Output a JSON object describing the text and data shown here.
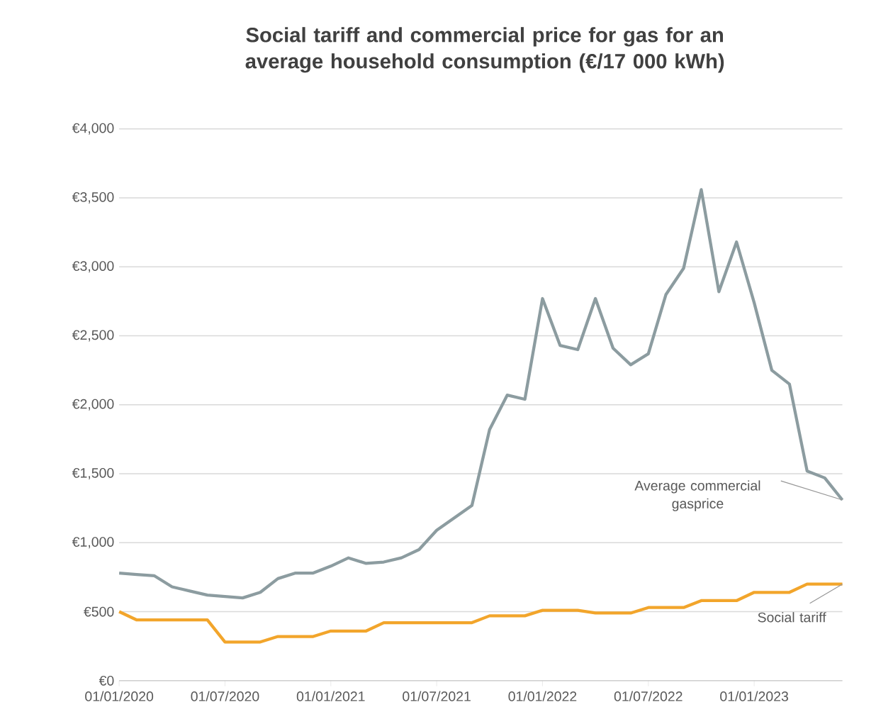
{
  "chart_data": {
    "type": "line",
    "title": "Social tariff and commercial price for gas for an average household consumption (€/17 000 kWh)",
    "x": [
      "2020-01",
      "2020-02",
      "2020-03",
      "2020-04",
      "2020-05",
      "2020-06",
      "2020-07",
      "2020-08",
      "2020-09",
      "2020-10",
      "2020-11",
      "2020-12",
      "2021-01",
      "2021-02",
      "2021-03",
      "2021-04",
      "2021-05",
      "2021-06",
      "2021-07",
      "2021-08",
      "2021-09",
      "2021-10",
      "2021-11",
      "2021-12",
      "2022-01",
      "2022-02",
      "2022-03",
      "2022-04",
      "2022-05",
      "2022-06",
      "2022-07",
      "2022-08",
      "2022-09",
      "2022-10",
      "2022-11",
      "2022-12",
      "2023-01",
      "2023-02",
      "2023-03",
      "2023-04",
      "2023-05",
      "2023-06"
    ],
    "series": [
      {
        "name": "Average commercial gasprice",
        "color": "#8c9ca0",
        "values": [
          780,
          770,
          760,
          680,
          650,
          620,
          610,
          600,
          640,
          740,
          780,
          780,
          830,
          890,
          850,
          860,
          890,
          950,
          1090,
          1180,
          1270,
          1820,
          2070,
          2040,
          2770,
          2430,
          2400,
          2770,
          2410,
          2290,
          2370,
          2800,
          2990,
          3560,
          2820,
          3180,
          2740,
          2250,
          2150,
          1520,
          1470,
          1310
        ]
      },
      {
        "name": "Social tariff",
        "color": "#f2a52b",
        "values": [
          500,
          440,
          440,
          440,
          440,
          440,
          280,
          280,
          280,
          320,
          320,
          320,
          360,
          360,
          360,
          420,
          420,
          420,
          420,
          420,
          420,
          470,
          470,
          470,
          510,
          510,
          510,
          490,
          490,
          490,
          530,
          530,
          530,
          580,
          580,
          580,
          640,
          640,
          640,
          700,
          700,
          700
        ]
      }
    ],
    "xlim": [
      "2020-01",
      "2023-06"
    ],
    "xticks": [
      {
        "value": "2020-01",
        "label": "01/01/2020"
      },
      {
        "value": "2020-07",
        "label": "01/07/2020"
      },
      {
        "value": "2021-01",
        "label": "01/01/2021"
      },
      {
        "value": "2021-07",
        "label": "01/07/2021"
      },
      {
        "value": "2022-01",
        "label": "01/01/2022"
      },
      {
        "value": "2022-07",
        "label": "01/07/2022"
      },
      {
        "value": "2023-01",
        "label": "01/01/2023"
      }
    ],
    "ylim": [
      0,
      4000
    ],
    "yticks": [
      {
        "value": 0,
        "label": "€0"
      },
      {
        "value": 500,
        "label": "€500"
      },
      {
        "value": 1000,
        "label": "€1,000"
      },
      {
        "value": 1500,
        "label": "€1,500"
      },
      {
        "value": 2000,
        "label": "€2,000"
      },
      {
        "value": 2500,
        "label": "€2,500"
      },
      {
        "value": 3000,
        "label": "€3,000"
      },
      {
        "value": 3500,
        "label": "€3,500"
      },
      {
        "value": 4000,
        "label": "€4,000"
      }
    ],
    "grid": "y"
  }
}
